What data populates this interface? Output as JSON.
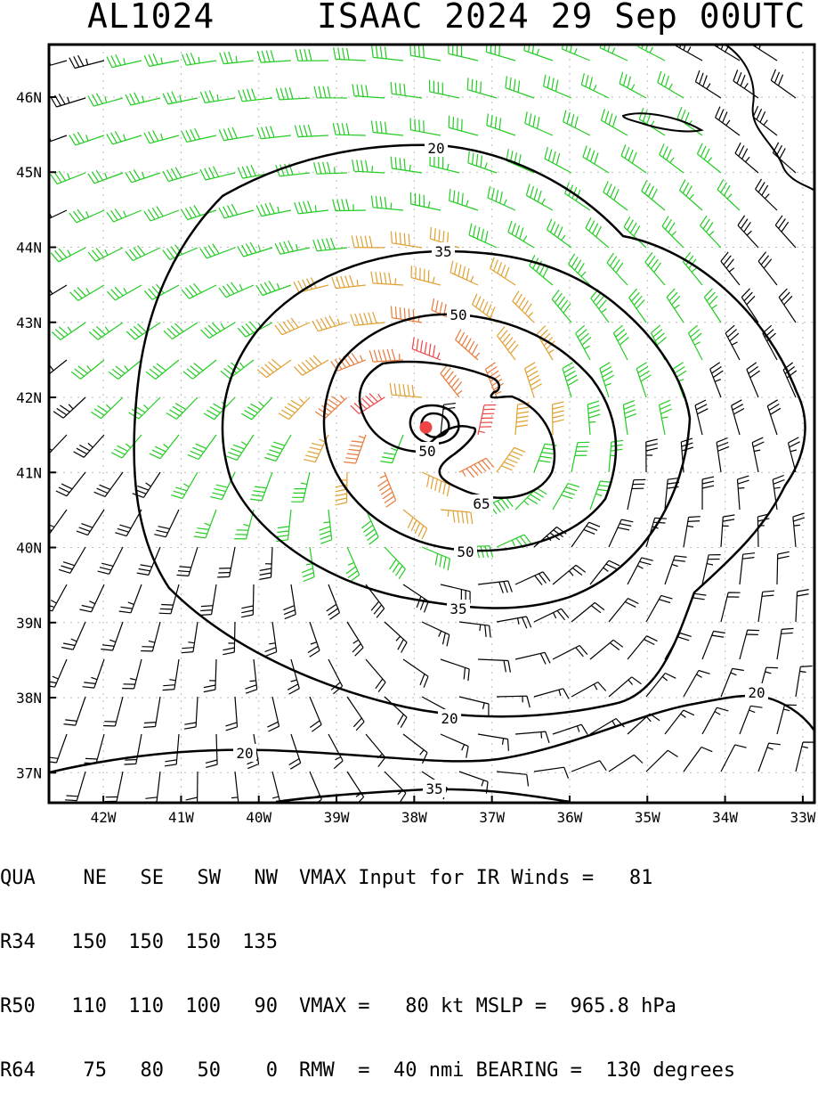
{
  "title": {
    "storm_id": "AL1024",
    "storm_info": "ISAAC 2024 29 Sep 00UTC"
  },
  "chart_data": {
    "type": "wind-barb-map",
    "x_axis": {
      "range": [
        -42.7,
        -32.85
      ],
      "ticks": [
        {
          "value": -42,
          "label": "42W"
        },
        {
          "value": -41,
          "label": "41W"
        },
        {
          "value": -40,
          "label": "40W"
        },
        {
          "value": -39,
          "label": "39W"
        },
        {
          "value": -38,
          "label": "38W"
        },
        {
          "value": -37,
          "label": "37W"
        },
        {
          "value": -36,
          "label": "36W"
        },
        {
          "value": -35,
          "label": "35W"
        },
        {
          "value": -34,
          "label": "34W"
        },
        {
          "value": -33,
          "label": "33W"
        }
      ]
    },
    "y_axis": {
      "range": [
        36.6,
        46.7
      ],
      "ticks": [
        {
          "value": 37,
          "label": "37N"
        },
        {
          "value": 38,
          "label": "38N"
        },
        {
          "value": 39,
          "label": "39N"
        },
        {
          "value": 40,
          "label": "40N"
        },
        {
          "value": 41,
          "label": "41N"
        },
        {
          "value": 42,
          "label": "42N"
        },
        {
          "value": 43,
          "label": "43N"
        },
        {
          "value": 44,
          "label": "44N"
        },
        {
          "value": 45,
          "label": "45N"
        },
        {
          "value": 46,
          "label": "46N"
        }
      ]
    },
    "grid": true,
    "center": {
      "lon": -37.85,
      "lat": 41.6
    },
    "wind_field": {
      "vmax_kt": 80,
      "rmw_nmi": 40,
      "bearing_deg": 130
    },
    "speed_classes": [
      {
        "min": 0,
        "max": 34,
        "color": "#000000"
      },
      {
        "min": 34,
        "max": 50,
        "color": "#22cc22"
      },
      {
        "min": 50,
        "max": 64,
        "color": "#e0a030"
      },
      {
        "min": 64,
        "max": 80,
        "color": "#e87a3a"
      },
      {
        "min": 80,
        "max": 999,
        "color": "#ee4444"
      }
    ],
    "contours": [
      {
        "level": 20,
        "labels": [
          "20",
          "20",
          "20",
          "20"
        ]
      },
      {
        "level": 35,
        "labels": [
          "35",
          "35",
          "35"
        ]
      },
      {
        "level": 50,
        "labels": [
          "50",
          "50",
          "50"
        ]
      },
      {
        "level": 65,
        "labels": [
          "65"
        ]
      }
    ],
    "colors": {
      "center_marker": "#ee4444",
      "contour": "#000000"
    }
  },
  "forecast": {
    "header": [
      "QUA",
      "NE",
      "SE",
      "SW",
      "NW"
    ],
    "rows": [
      {
        "label": "R34",
        "values": [
          "150",
          "150",
          "150",
          "135"
        ]
      },
      {
        "label": "R50",
        "values": [
          "110",
          "110",
          "100",
          "90"
        ]
      },
      {
        "label": "R64",
        "values": [
          "75",
          "80",
          "50",
          "0"
        ]
      }
    ],
    "lines": [
      "VMAX Input for IR Winds =   81",
      "",
      "VMAX =   80 kt MSLP =  965.8 hPa",
      "RMW  =  40 nmi BEARING =  130 degrees"
    ]
  }
}
